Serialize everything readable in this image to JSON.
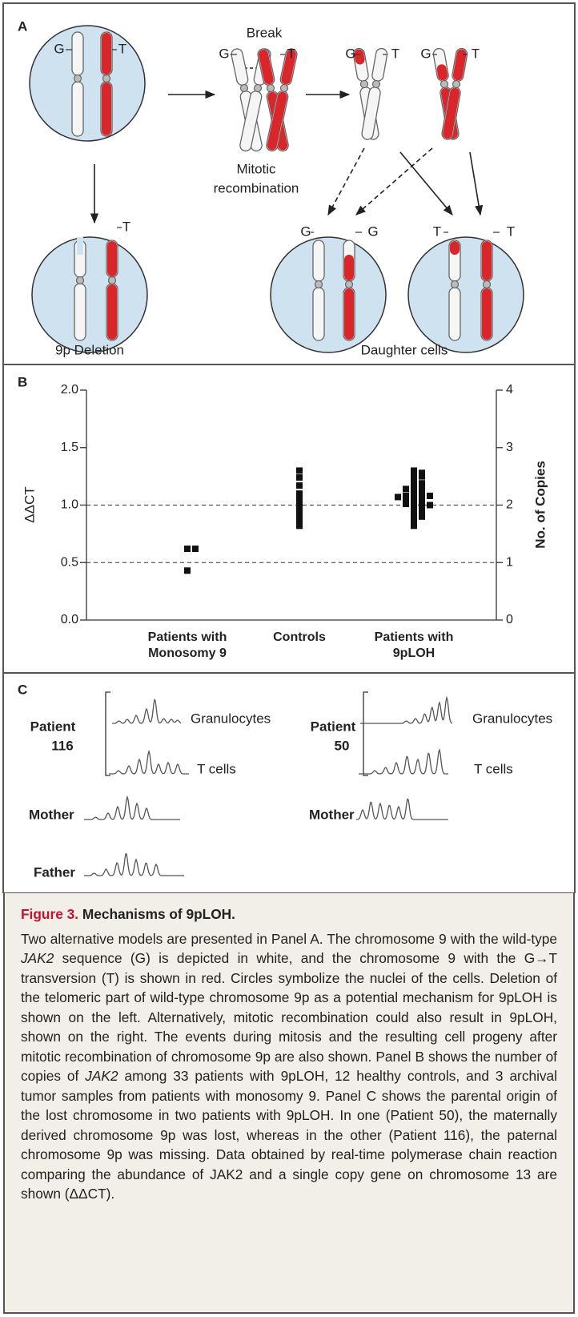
{
  "panel_a": {
    "label": "A",
    "allele_g": "G",
    "allele_t": "T",
    "break": "Break",
    "mitotic_recombination": [
      "Mitotic",
      "recombination"
    ],
    "deletion": "9p Deletion",
    "daughter_cells": "Daughter cells"
  },
  "panel_b": {
    "label": "B"
  },
  "chart_data": {
    "type": "strip",
    "categories": [
      [
        "Patients with",
        "Monosomy 9"
      ],
      [
        "Controls"
      ],
      [
        "Patients with",
        "9pLOH"
      ]
    ],
    "values": [
      [
        0.62,
        0.62,
        0.43
      ],
      [
        1.3,
        1.24,
        1.17,
        1.1,
        1.05,
        1.01,
        0.98,
        0.94,
        0.91,
        0.88,
        0.85,
        0.82
      ],
      [
        1.3,
        1.28,
        1.26,
        1.25,
        1.22,
        1.2,
        1.19,
        1.17,
        1.16,
        1.14,
        1.13,
        1.12,
        1.1,
        1.09,
        1.08,
        1.08,
        1.07,
        1.06,
        1.05,
        1.04,
        1.03,
        1.02,
        1.01,
        1.0,
        0.99,
        0.98,
        0.96,
        0.94,
        0.92,
        0.9,
        0.88,
        0.85,
        0.82
      ]
    ],
    "color": "#111111",
    "ylabel": "ΔΔCT",
    "y2label": "No. of Copies",
    "ylim": [
      0,
      2
    ],
    "yticks": [
      {
        "value": 0,
        "label": "0.0"
      },
      {
        "value": 0.5,
        "label": "0.5"
      },
      {
        "value": 1,
        "label": "1.0"
      },
      {
        "value": 1.5,
        "label": "1.5"
      },
      {
        "value": 2,
        "label": "2.0"
      }
    ],
    "y2lim": [
      0,
      4
    ],
    "y2ticks": [
      0,
      1,
      2,
      3,
      4
    ],
    "reference_lines": [
      0.5,
      1
    ]
  },
  "panel_c": {
    "label": "C",
    "left": {
      "patient": [
        "Patient",
        "116"
      ],
      "granulocytes": "Granulocytes",
      "t_cells": "T cells",
      "mother": "Mother",
      "father": "Father"
    },
    "right": {
      "patient": [
        "Patient",
        "50"
      ],
      "granulocytes": "Granulocytes",
      "t_cells": "T cells",
      "mother": "Mother"
    }
  },
  "caption": {
    "figure": "Figure 3.",
    "title": "Mechanisms of 9pLOH.",
    "body": [
      "Two alternative models are presented in Panel A. The chromosome 9 with the wild-type ",
      "JAK2",
      " sequence (G) is depicted in white, and the chromosome 9 with the G→T transversion (T) is shown in red. Circles symbolize the nuclei of the cells. Deletion of the telomeric part of wild-type chromosome 9p as a potential mechanism for 9pLOH is shown on the left. Alternatively, mitotic recombination could also result in 9pLOH, shown on the right. The events during mitosis and the resulting cell progeny after mitotic recombination of chromosome 9p are also shown. Panel B shows the number of copies of ",
      "JAK2",
      " among 33 patients with 9pLOH, 12 healthy controls, and 3 archival tumor samples from patients with monosomy 9. Panel C shows the parental origin of the lost chromosome in two patients with 9pLOH. In one (Patient 50), the maternally derived chromosome 9p was lost, whereas in the other (Patient 116), the paternal chromosome 9p was missing. Data obtained by real-time polymerase chain reaction comparing the abundance of JAK2 and a single copy gene on chromosome 13 are shown (ΔΔCT)."
    ]
  }
}
